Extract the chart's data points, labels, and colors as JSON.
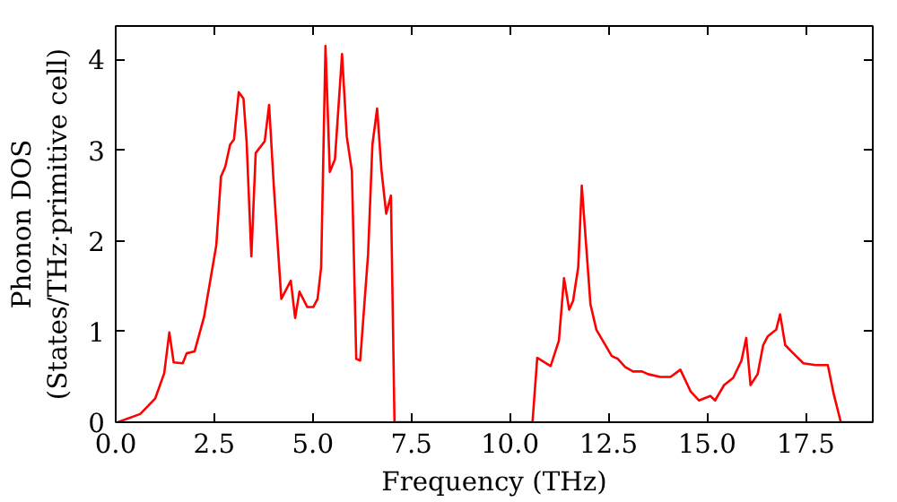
{
  "chart_data": {
    "type": "line",
    "xlabel": "Frequency (THz)",
    "ylabel": "Phonon DOS\n(States/THz·primitive cell)",
    "x": [
      0.05,
      0.62,
      1.0,
      1.23,
      1.36,
      1.47,
      1.7,
      1.8,
      2.0,
      2.24,
      2.55,
      2.67,
      2.78,
      2.9,
      3.0,
      3.12,
      3.24,
      3.32,
      3.44,
      3.55,
      3.78,
      3.89,
      4.01,
      4.2,
      4.44,
      4.55,
      4.66,
      4.86,
      5.01,
      5.12,
      5.21,
      5.32,
      5.43,
      5.56,
      5.74,
      5.86,
      5.99,
      6.1,
      6.2,
      6.4,
      6.51,
      6.63,
      6.74,
      6.86,
      6.98,
      7.07,
      10.57,
      10.69,
      11.03,
      11.24,
      11.37,
      11.5,
      11.6,
      11.73,
      11.82,
      12.04,
      12.19,
      12.58,
      12.73,
      12.92,
      13.12,
      13.35,
      13.5,
      13.81,
      14.07,
      14.32,
      14.58,
      14.79,
      15.08,
      15.2,
      15.43,
      15.66,
      15.87,
      15.99,
      16.1,
      16.28,
      16.42,
      16.54,
      16.75,
      16.85,
      16.98,
      17.16,
      17.44,
      17.75,
      18.06,
      18.21,
      18.39,
      19.2
    ],
    "series": [
      {
        "color": "#ff0000",
        "values": [
          0,
          0.09,
          0.26,
          0.54,
          0.99,
          0.66,
          0.65,
          0.76,
          0.78,
          1.16,
          1.95,
          2.71,
          2.82,
          3.06,
          3.12,
          3.64,
          3.57,
          3.09,
          1.83,
          2.97,
          3.1,
          3.5,
          2.6,
          1.36,
          1.56,
          1.15,
          1.44,
          1.27,
          1.27,
          1.36,
          1.71,
          4.15,
          2.76,
          2.9,
          4.06,
          3.15,
          2.77,
          0.7,
          0.68,
          1.85,
          3.06,
          3.46,
          2.78,
          2.3,
          2.5,
          0,
          0,
          0.71,
          0.62,
          0.9,
          1.59,
          1.24,
          1.34,
          1.71,
          2.61,
          1.3,
          1.02,
          0.73,
          0.7,
          0.61,
          0.56,
          0.56,
          0.53,
          0.5,
          0.5,
          0.58,
          0.34,
          0.24,
          0.29,
          0.24,
          0.41,
          0.49,
          0.68,
          0.93,
          0.41,
          0.53,
          0.85,
          0.95,
          1.02,
          1.19,
          0.85,
          0.77,
          0.65,
          0.63,
          0.63,
          0.31,
          0,
          0
        ]
      }
    ],
    "xlim": [
      0,
      19.2
    ],
    "ylim": [
      0,
      4.37
    ],
    "xticks": [
      {
        "value": 0,
        "label": "0.0"
      },
      {
        "value": 2.5,
        "label": "2.5"
      },
      {
        "value": 5,
        "label": "5.0"
      },
      {
        "value": 7.5,
        "label": "7.5"
      },
      {
        "value": 10,
        "label": "10.0"
      },
      {
        "value": 12.5,
        "label": "12.5"
      },
      {
        "value": 15,
        "label": "15.0"
      },
      {
        "value": 17.5,
        "label": "17.5"
      }
    ],
    "yticks": [
      0,
      1,
      2,
      3,
      4
    ],
    "grid": false,
    "marker": "none",
    "line_style": "solid"
  }
}
